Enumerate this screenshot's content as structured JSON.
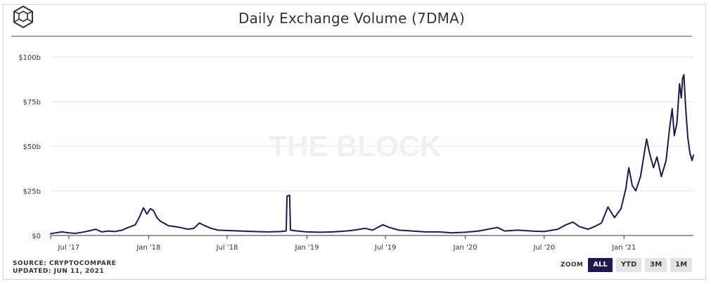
{
  "header": {
    "title": "Daily Exchange Volume (7DMA)",
    "logo_icon": "the-block-logo-icon"
  },
  "watermark": "THE BLOCK",
  "chart_data": {
    "type": "line",
    "title": "Daily Exchange Volume (7DMA)",
    "xlabel": "",
    "ylabel": "",
    "yunit": "USD billions",
    "ylim": [
      0,
      100
    ],
    "xlim": [
      "2017-05-20",
      "2021-06-10"
    ],
    "grid": true,
    "legend": "none",
    "y_ticks": [
      {
        "value": 0,
        "label": "$0"
      },
      {
        "value": 25,
        "label": "$25b"
      },
      {
        "value": 50,
        "label": "$50b"
      },
      {
        "value": 75,
        "label": "$75b"
      },
      {
        "value": 100,
        "label": "$100b"
      }
    ],
    "x_ticks": [
      {
        "date": "2017-07-01",
        "label": "Jul '17"
      },
      {
        "date": "2018-01-01",
        "label": "Jan '18"
      },
      {
        "date": "2018-07-01",
        "label": "Jul '18"
      },
      {
        "date": "2019-01-01",
        "label": "Jan '19"
      },
      {
        "date": "2019-07-01",
        "label": "Jul '19"
      },
      {
        "date": "2020-01-01",
        "label": "Jan '20"
      },
      {
        "date": "2020-07-01",
        "label": "Jul '20"
      },
      {
        "date": "2021-01-01",
        "label": "Jan '21"
      }
    ],
    "series": [
      {
        "color": "#1f1a4d",
        "points": [
          [
            "2017-05-20",
            1.0
          ],
          [
            "2017-06-01",
            1.5
          ],
          [
            "2017-06-15",
            2.0
          ],
          [
            "2017-07-01",
            1.5
          ],
          [
            "2017-07-15",
            1.2
          ],
          [
            "2017-08-01",
            1.8
          ],
          [
            "2017-08-15",
            2.5
          ],
          [
            "2017-09-01",
            3.5
          ],
          [
            "2017-09-15",
            2.0
          ],
          [
            "2017-10-01",
            2.5
          ],
          [
            "2017-10-15",
            2.2
          ],
          [
            "2017-11-01",
            3.0
          ],
          [
            "2017-11-15",
            4.5
          ],
          [
            "2017-12-01",
            6.0
          ],
          [
            "2017-12-10",
            10.0
          ],
          [
            "2017-12-20",
            15.5
          ],
          [
            "2017-12-28",
            12.0
          ],
          [
            "2018-01-05",
            15.0
          ],
          [
            "2018-01-12",
            14.0
          ],
          [
            "2018-01-20",
            10.0
          ],
          [
            "2018-01-28",
            8.0
          ],
          [
            "2018-02-05",
            7.0
          ],
          [
            "2018-02-15",
            5.5
          ],
          [
            "2018-03-01",
            5.0
          ],
          [
            "2018-03-15",
            4.5
          ],
          [
            "2018-04-01",
            3.5
          ],
          [
            "2018-04-15",
            4.0
          ],
          [
            "2018-04-28",
            7.0
          ],
          [
            "2018-05-10",
            5.5
          ],
          [
            "2018-05-25",
            4.0
          ],
          [
            "2018-06-10",
            3.0
          ],
          [
            "2018-07-01",
            2.8
          ],
          [
            "2018-08-01",
            2.5
          ],
          [
            "2018-09-01",
            2.2
          ],
          [
            "2018-10-01",
            2.0
          ],
          [
            "2018-11-01",
            2.2
          ],
          [
            "2018-11-14",
            2.5
          ],
          [
            "2018-11-16",
            22.0
          ],
          [
            "2018-11-22",
            22.5
          ],
          [
            "2018-11-24",
            3.0
          ],
          [
            "2018-12-10",
            2.5
          ],
          [
            "2019-01-01",
            2.0
          ],
          [
            "2019-02-01",
            1.8
          ],
          [
            "2019-03-01",
            2.0
          ],
          [
            "2019-04-01",
            2.5
          ],
          [
            "2019-04-20",
            3.0
          ],
          [
            "2019-05-15",
            4.0
          ],
          [
            "2019-06-01",
            3.0
          ],
          [
            "2019-06-25",
            6.0
          ],
          [
            "2019-07-10",
            4.5
          ],
          [
            "2019-08-01",
            3.0
          ],
          [
            "2019-09-01",
            2.5
          ],
          [
            "2019-10-01",
            2.0
          ],
          [
            "2019-11-01",
            2.0
          ],
          [
            "2019-12-01",
            1.5
          ],
          [
            "2020-01-01",
            1.8
          ],
          [
            "2020-02-01",
            2.5
          ],
          [
            "2020-03-15",
            4.5
          ],
          [
            "2020-04-01",
            2.5
          ],
          [
            "2020-05-01",
            3.0
          ],
          [
            "2020-06-01",
            2.5
          ],
          [
            "2020-07-01",
            2.2
          ],
          [
            "2020-08-01",
            3.5
          ],
          [
            "2020-08-20",
            6.0
          ],
          [
            "2020-09-05",
            7.5
          ],
          [
            "2020-09-20",
            5.0
          ],
          [
            "2020-10-10",
            3.5
          ],
          [
            "2020-10-25",
            5.0
          ],
          [
            "2020-11-10",
            7.0
          ],
          [
            "2020-11-25",
            16.0
          ],
          [
            "2020-12-10",
            10.0
          ],
          [
            "2020-12-25",
            15.0
          ],
          [
            "2021-01-05",
            26.0
          ],
          [
            "2021-01-12",
            38.0
          ],
          [
            "2021-01-20",
            28.0
          ],
          [
            "2021-01-28",
            25.0
          ],
          [
            "2021-02-08",
            33.0
          ],
          [
            "2021-02-22",
            54.0
          ],
          [
            "2021-03-01",
            46.0
          ],
          [
            "2021-03-10",
            38.0
          ],
          [
            "2021-03-18",
            44.0
          ],
          [
            "2021-03-28",
            33.0
          ],
          [
            "2021-04-08",
            42.0
          ],
          [
            "2021-04-16",
            60.0
          ],
          [
            "2021-04-22",
            71.0
          ],
          [
            "2021-04-27",
            56.0
          ],
          [
            "2021-05-03",
            63.0
          ],
          [
            "2021-05-09",
            85.0
          ],
          [
            "2021-05-13",
            77.0
          ],
          [
            "2021-05-16",
            88.0
          ],
          [
            "2021-05-19",
            90.0
          ],
          [
            "2021-05-23",
            72.0
          ],
          [
            "2021-05-28",
            55.0
          ],
          [
            "2021-06-02",
            46.0
          ],
          [
            "2021-06-07",
            42.0
          ],
          [
            "2021-06-10",
            45.0
          ]
        ]
      }
    ]
  },
  "footer": {
    "source": "SOURCE: CRYPTOCOMPARE",
    "updated": "UPDATED: JUN 11, 2021"
  },
  "zoom": {
    "label": "ZOOM",
    "buttons": [
      {
        "label": "ALL",
        "active": true
      },
      {
        "label": "YTD",
        "active": false
      },
      {
        "label": "3M",
        "active": false
      },
      {
        "label": "1M",
        "active": false
      }
    ]
  },
  "colors": {
    "line": "#1f1a4d",
    "accent_rule": "#7a3da8",
    "grid": "#e6e6e6",
    "axis": "#333333",
    "watermark": "#f0f0f0",
    "zoom_active_bg": "#1f1a4d",
    "zoom_inactive_bg": "#e4e4e4"
  }
}
